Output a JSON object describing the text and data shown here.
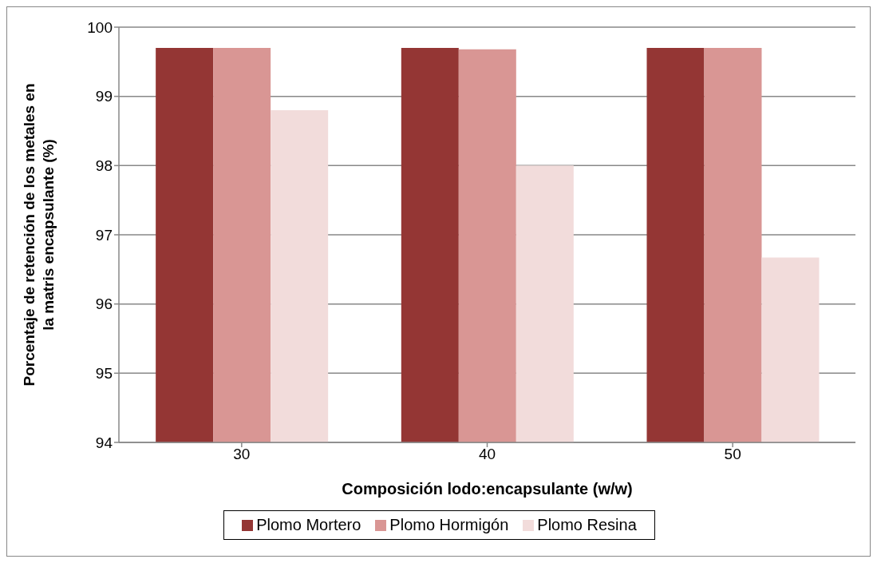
{
  "chart_data": {
    "type": "bar",
    "xlabel": "Composición lodo:encapsulante (w/w)",
    "ylabel": "Porcentaje de retención de los metales en la matris encapsulante (%)",
    "categories": [
      "30",
      "40",
      "50"
    ],
    "series": [
      {
        "name": "Plomo Mortero",
        "color": "#943634",
        "values": [
          99.7,
          99.7,
          99.7
        ]
      },
      {
        "name": "Plomo Hormigón",
        "color": "#d99694",
        "values": [
          99.7,
          99.68,
          99.7
        ]
      },
      {
        "name": "Plomo Resina",
        "color": "#f2dcdb",
        "values": [
          98.8,
          98.0,
          96.67
        ]
      }
    ],
    "ylim": [
      94,
      100
    ],
    "yticks": [
      94,
      95,
      96,
      97,
      98,
      99,
      100
    ],
    "grid": "y",
    "legend": "bottom"
  }
}
